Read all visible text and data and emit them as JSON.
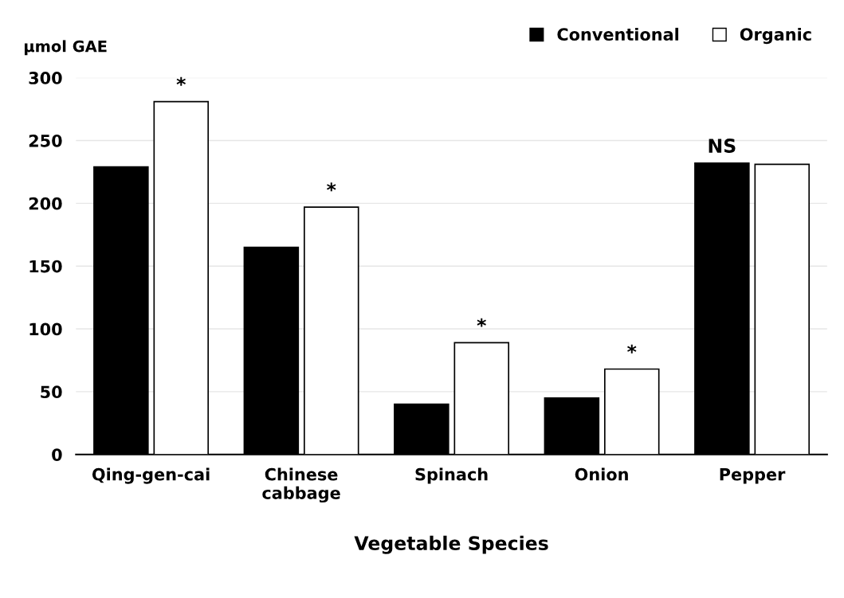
{
  "chart_data": {
    "type": "bar",
    "xlabel": "Vegetable Species",
    "ylabel": "µmol GAE",
    "categories": [
      "Qing-gen-cai",
      "Chinese\ncabbage",
      "Spinach",
      "Onion",
      "Pepper"
    ],
    "series": [
      {
        "name": "Conventional",
        "color": "#000000",
        "values": [
          229,
          165,
          40,
          45,
          232
        ]
      },
      {
        "name": "Organic",
        "color": "#ffffff",
        "values": [
          281,
          197,
          89,
          68,
          231
        ]
      }
    ],
    "ylim": [
      0,
      300
    ],
    "yticks": [
      0,
      50,
      100,
      150,
      200,
      250,
      300
    ],
    "grid": "y",
    "legend": "top right",
    "annotations": [
      "*",
      "*",
      "*",
      "*",
      "NS"
    ]
  }
}
